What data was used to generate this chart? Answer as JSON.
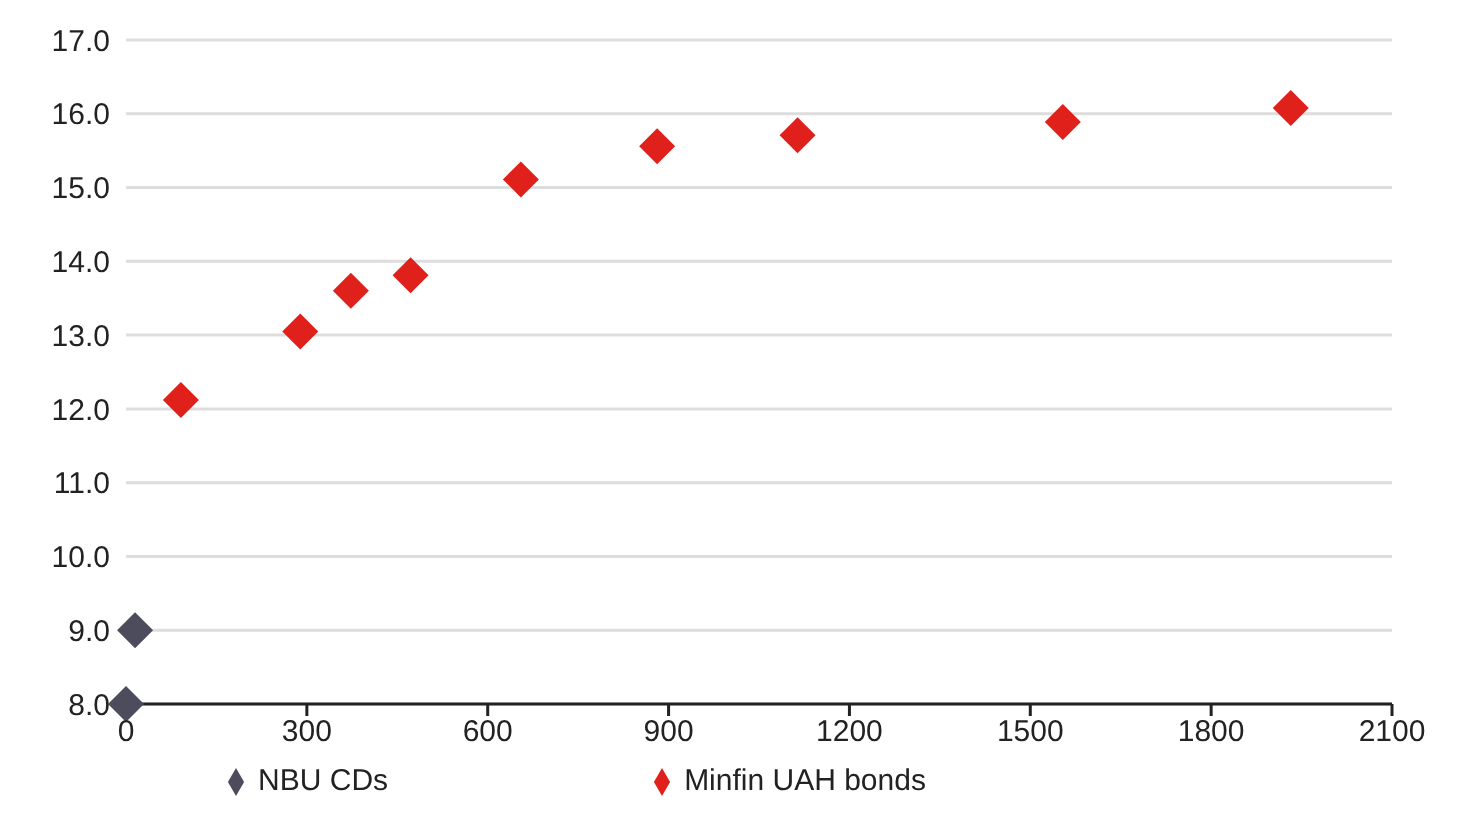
{
  "chart_data": {
    "type": "scatter",
    "marker": "diamond",
    "grid": "y",
    "legend": "bottom",
    "xlim": [
      0,
      2100
    ],
    "xticks": [
      0,
      300,
      600,
      900,
      1200,
      1500,
      1800,
      2100
    ],
    "ylim": [
      8,
      17
    ],
    "yticks": [
      {
        "value": 8,
        "label": "8.0"
      },
      {
        "value": 9,
        "label": "9.0"
      },
      {
        "value": 10,
        "label": "10.0"
      },
      {
        "value": 11,
        "label": "11.0"
      },
      {
        "value": 12,
        "label": "12.0"
      },
      {
        "value": 13,
        "label": "13.0"
      },
      {
        "value": 14,
        "label": "14.0"
      },
      {
        "value": 15,
        "label": "15.0"
      },
      {
        "value": 16,
        "label": "16.0"
      },
      {
        "value": 17,
        "label": "17.0"
      }
    ],
    "series": [
      {
        "name": "NBU CDs",
        "color": "#4d4c5c",
        "x": [
          0,
          15
        ],
        "values": [
          8.0,
          9.0
        ]
      },
      {
        "name": "Minfin UAH bonds",
        "color": "#e0201a",
        "x": [
          91,
          289,
          373,
          472,
          655,
          881,
          1114,
          1554,
          1932
        ],
        "values": [
          12.12,
          13.05,
          13.6,
          13.81,
          15.11,
          15.56,
          15.71,
          15.89,
          16.08
        ]
      }
    ]
  }
}
